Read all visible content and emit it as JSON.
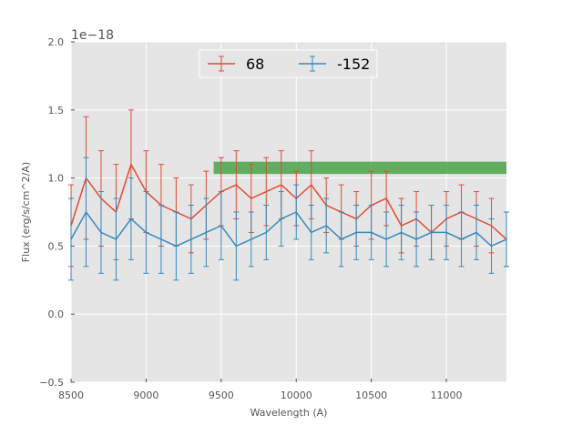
{
  "chart_data": {
    "type": "line",
    "xlabel": "Wavelength (A)",
    "ylabel": "Flux (erg/s/cm^2/A)",
    "y_offset_label": "1e−18",
    "xlim": [
      8500,
      11400
    ],
    "ylim": [
      -0.5,
      2.0
    ],
    "xticks": [
      "8500",
      "9000",
      "9500",
      "10000",
      "10500",
      "11000"
    ],
    "yticks": [
      "−0.5",
      "0.0",
      "0.5",
      "1.0",
      "1.5",
      "2.0"
    ],
    "grid": true,
    "legend_position": "top-center",
    "band": {
      "x0": 9450,
      "x1": 11400,
      "y0": 1.03,
      "y1": 1.12,
      "color": "#4aa54a"
    },
    "series": [
      {
        "name": "68",
        "color": "#e24a33",
        "x": [
          8500,
          8600,
          8700,
          8800,
          8900,
          9000,
          9100,
          9200,
          9300,
          9400,
          9500,
          9600,
          9700,
          9800,
          9900,
          10000,
          10100,
          10200,
          10300,
          10400,
          10500,
          10600,
          10700,
          10800,
          10900,
          11000,
          11100,
          11200,
          11300,
          11400
        ],
        "y": [
          0.65,
          1.0,
          0.85,
          0.75,
          1.1,
          0.9,
          0.8,
          0.75,
          0.7,
          0.8,
          0.9,
          0.95,
          0.85,
          0.9,
          0.95,
          0.85,
          0.95,
          0.8,
          0.75,
          0.7,
          0.8,
          0.85,
          0.65,
          0.7,
          0.6,
          0.7,
          0.75,
          0.7,
          0.65,
          0.55
        ],
        "err": [
          0.3,
          0.45,
          0.35,
          0.35,
          0.4,
          0.3,
          0.3,
          0.25,
          0.25,
          0.25,
          0.25,
          0.25,
          0.25,
          0.25,
          0.25,
          0.2,
          0.25,
          0.2,
          0.2,
          0.2,
          0.25,
          0.2,
          0.2,
          0.2,
          0.2,
          0.2,
          0.2,
          0.2,
          0.2,
          0.2
        ]
      },
      {
        "name": "-152",
        "color": "#348abd",
        "x": [
          8500,
          8600,
          8700,
          8800,
          8900,
          9000,
          9100,
          9200,
          9300,
          9400,
          9500,
          9600,
          9700,
          9800,
          9900,
          10000,
          10100,
          10200,
          10300,
          10400,
          10500,
          10600,
          10700,
          10800,
          10900,
          11000,
          11100,
          11200,
          11300,
          11400
        ],
        "y": [
          0.55,
          0.75,
          0.6,
          0.55,
          0.7,
          0.6,
          0.55,
          0.5,
          0.55,
          0.6,
          0.65,
          0.5,
          0.55,
          0.6,
          0.7,
          0.75,
          0.6,
          0.65,
          0.55,
          0.6,
          0.6,
          0.55,
          0.6,
          0.55,
          0.6,
          0.6,
          0.55,
          0.6,
          0.5,
          0.55
        ],
        "err": [
          0.3,
          0.4,
          0.3,
          0.3,
          0.3,
          0.3,
          0.25,
          0.25,
          0.25,
          0.25,
          0.25,
          0.25,
          0.2,
          0.2,
          0.2,
          0.2,
          0.2,
          0.2,
          0.2,
          0.2,
          0.2,
          0.2,
          0.2,
          0.2,
          0.2,
          0.2,
          0.2,
          0.2,
          0.2,
          0.2
        ]
      }
    ]
  }
}
